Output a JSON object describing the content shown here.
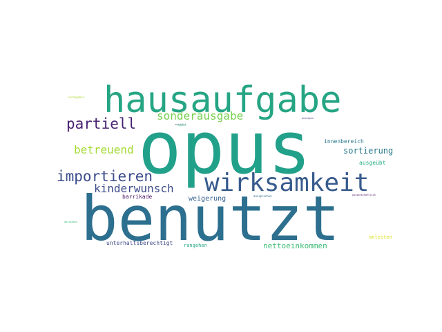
{
  "words": [
    {
      "text": "opus",
      "color": "#21a08a"
    },
    {
      "text": "benutzt",
      "color": "#2d6f8e"
    },
    {
      "text": "hausaufgabe",
      "color": "#26a584"
    },
    {
      "text": "wirksamkeit",
      "color": "#375b8d"
    },
    {
      "text": "importieren",
      "color": "#3b4b8b"
    },
    {
      "text": "partiell",
      "color": "#482173"
    },
    {
      "text": "sonderausgabe",
      "color": "#78d151"
    },
    {
      "text": "betreuend",
      "color": "#a5db36"
    },
    {
      "text": "kinderwunsch",
      "color": "#3e4c8a"
    },
    {
      "text": "sortierung",
      "color": "#2a788e"
    },
    {
      "text": "nettoeinkommen",
      "color": "#3cbb75"
    },
    {
      "text": "weigerung",
      "color": "#355f8d"
    },
    {
      "text": "innenbereich",
      "color": "#2a788e"
    },
    {
      "text": "ausgeübt",
      "color": "#25ab82"
    },
    {
      "text": "barrikade",
      "color": "#471365"
    },
    {
      "text": "unterhaltsberechtigt",
      "color": "#3e4a89"
    },
    {
      "text": "rangehen",
      "color": "#26a784"
    },
    {
      "text": "anleiten",
      "color": "#d8e219"
    },
    {
      "text": "vorangehen",
      "color": "#addc30"
    },
    {
      "text": "aussprechen",
      "color": "#2f6c8e"
    },
    {
      "text": "unerhört",
      "color": "#365c8d"
    },
    {
      "text": "anzeigen",
      "color": "#46327e"
    },
    {
      "text": "wissenschaftlich",
      "color": "#471365"
    },
    {
      "text": "abstimmen",
      "color": "#3aba76"
    },
    {
      "text": "abgeben",
      "color": "#3cbc74"
    }
  ]
}
